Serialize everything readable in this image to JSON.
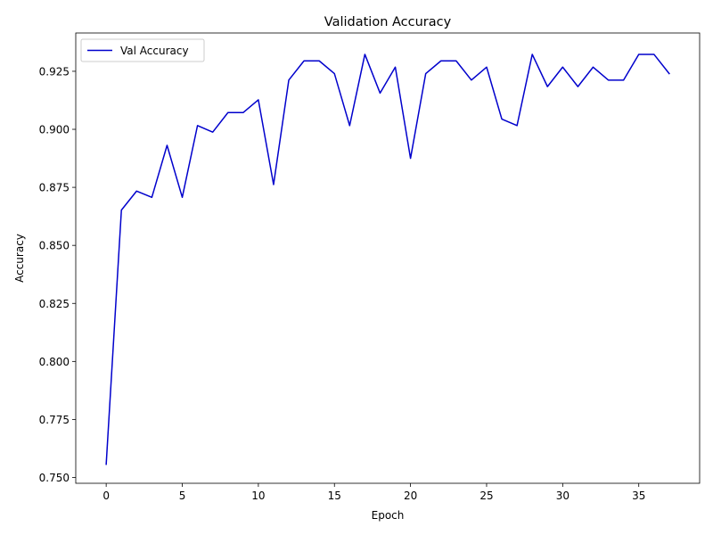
{
  "chart_data": {
    "type": "line",
    "title": "Validation Accuracy",
    "xlabel": "Epoch",
    "ylabel": "Accuracy",
    "xlim": [
      -2,
      39
    ],
    "ylim": [
      0.7475,
      0.9415
    ],
    "xticks": [
      0,
      5,
      10,
      15,
      20,
      25,
      30,
      35
    ],
    "yticks": [
      0.75,
      0.775,
      0.8,
      0.825,
      0.85,
      0.875,
      0.9,
      0.925
    ],
    "ytick_labels": [
      "0.750",
      "0.775",
      "0.800",
      "0.825",
      "0.850",
      "0.875",
      "0.900",
      "0.925"
    ],
    "grid": false,
    "legend_position": "top-left",
    "series": [
      {
        "name": "Val Accuracy",
        "color": "#0000cc",
        "x": [
          0,
          1,
          2,
          3,
          4,
          5,
          6,
          7,
          8,
          9,
          10,
          11,
          12,
          13,
          14,
          15,
          16,
          17,
          18,
          19,
          20,
          21,
          22,
          23,
          24,
          25,
          26,
          27,
          28,
          29,
          30,
          31,
          32,
          33,
          34,
          35,
          36,
          37
        ],
        "values": [
          0.7557,
          0.8652,
          0.8734,
          0.8707,
          0.8931,
          0.8707,
          0.9016,
          0.8988,
          0.9072,
          0.9072,
          0.9127,
          0.8762,
          0.9212,
          0.9295,
          0.9295,
          0.924,
          0.9016,
          0.9323,
          0.9156,
          0.9268,
          0.8875,
          0.924,
          0.9295,
          0.9295,
          0.9212,
          0.9268,
          0.9044,
          0.9016,
          0.9323,
          0.9184,
          0.9268,
          0.9184,
          0.9268,
          0.9212,
          0.9212,
          0.9323,
          0.9323,
          0.924
        ]
      }
    ]
  }
}
